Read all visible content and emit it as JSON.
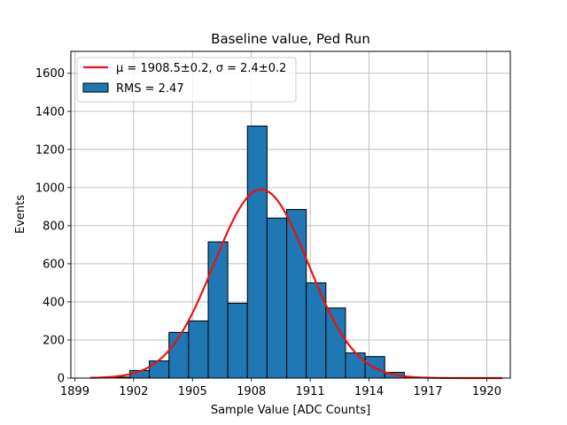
{
  "chart_data": {
    "type": "bar",
    "title": "Baseline value, Ped Run",
    "xlabel": "Sample Value [ADC Counts]",
    "ylabel": "Events",
    "xlim": [
      1898.8,
      1921.2
    ],
    "ylim": [
      0,
      1715
    ],
    "xticks": [
      "1899",
      "1902",
      "1905",
      "1908",
      "1911",
      "1914",
      "1917",
      "1920"
    ],
    "yticks": [
      "0",
      "200",
      "400",
      "600",
      "800",
      "1000",
      "1200",
      "1400",
      "1600"
    ],
    "grid": true,
    "legend_position": "top-left",
    "bin_edges": [
      1899.8,
      1900.8,
      1901.8,
      1902.8,
      1903.8,
      1904.8,
      1905.8,
      1906.8,
      1907.8,
      1908.8,
      1909.8,
      1910.8,
      1911.8,
      1912.8,
      1913.8,
      1914.8,
      1915.8,
      1916.8,
      1917.8,
      1918.8,
      1919.8,
      1920.8
    ],
    "counts": [
      3,
      5,
      40,
      90,
      240,
      300,
      715,
      393,
      1323,
      840,
      885,
      500,
      368,
      132,
      113,
      30,
      3,
      0,
      0,
      0,
      0
    ],
    "bar_color": "#1f77b4",
    "fit": {
      "mu": 1908.5,
      "sigma": 2.4,
      "amplitude": 990,
      "color": "#ee1111"
    },
    "legend": [
      {
        "label": "μ = 1908.5±0.2, σ = 2.4±0.2",
        "kind": "line",
        "color": "#ee1111"
      },
      {
        "label": "RMS = 2.47",
        "kind": "patch",
        "color": "#1f77b4"
      }
    ]
  }
}
